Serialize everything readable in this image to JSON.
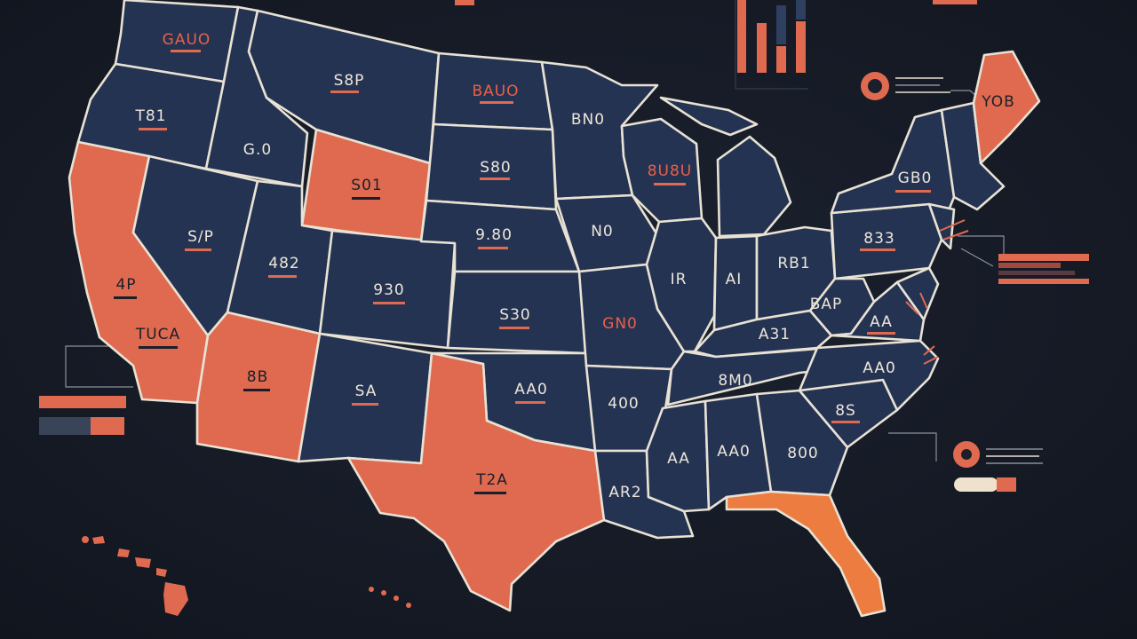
{
  "colors": {
    "background": "#161b26",
    "state_navy": "#253352",
    "state_highlight": "#e06a50",
    "state_highlight_alt": "#ec7c3f",
    "border": "#e8e2d4",
    "label_light": "#ece6da",
    "label_dark": "#1a1f2b",
    "label_red": "#e8604a"
  },
  "state_labels": {
    "wa": "GAUO",
    "mt": "S8P",
    "nd": "BAUO",
    "or": "T81",
    "id": "G.0",
    "wy": "S01",
    "sd": "S80",
    "mn": "BN0",
    "wi": "8U8U",
    "ne": "9.80",
    "ia": "N0",
    "nv": "S/P",
    "ut": "482",
    "co": "930",
    "ks": "S30",
    "mo": "GN0",
    "il": "IR",
    "in": "AI",
    "oh": "RB1",
    "pa": "833",
    "ny": "GB0",
    "me": "YOB",
    "ca_n": "4P",
    "ca_s": "TUCA",
    "az": "8B",
    "nm": "SA",
    "ok": "AA0",
    "tx": "T2A",
    "ar": "400",
    "la": "AR2",
    "ms": "AA",
    "al": "AA0",
    "ga": "800",
    "tn": "8M0",
    "ky": "A31",
    "wv": "BAP",
    "va": "AA",
    "nc": "AA0",
    "sc": "8S"
  }
}
